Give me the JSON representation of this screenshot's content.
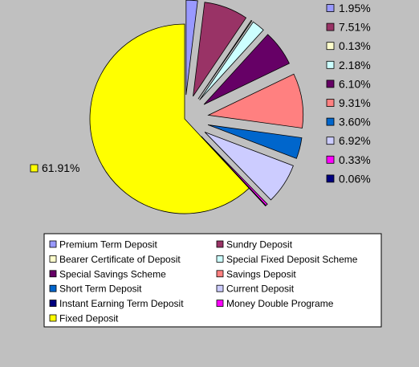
{
  "chart_data": {
    "type": "pie",
    "exploded": true,
    "legend_position": "bottom",
    "slices": [
      {
        "name": "Premium Term Deposit",
        "value": 1.95,
        "label": "1.95%",
        "color": "#9999ff"
      },
      {
        "name": "Sundry Deposit",
        "value": 7.51,
        "label": "7.51%",
        "color": "#993366"
      },
      {
        "name": "Bearer Certificate of Deposit",
        "value": 0.13,
        "label": "0.13%",
        "color": "#ffffcc"
      },
      {
        "name": "Special Fixed Deposit Scheme",
        "value": 2.18,
        "label": "2.18%",
        "color": "#ccffff"
      },
      {
        "name": "Special Savings Scheme",
        "value": 6.1,
        "label": "6.10%",
        "color": "#660066"
      },
      {
        "name": "Savings Deposit",
        "value": 9.31,
        "label": "9.31%",
        "color": "#ff8080"
      },
      {
        "name": "Short Term Deposit",
        "value": 3.6,
        "label": "3.60%",
        "color": "#0066cc"
      },
      {
        "name": "Current Deposit",
        "value": 6.92,
        "label": "6.92%",
        "color": "#ccccff"
      },
      {
        "name": "Money Double Programe",
        "value": 0.33,
        "label": "0.33%",
        "color": "#ff00ff"
      },
      {
        "name": "Instant Earning Term Deposit",
        "value": 0.06,
        "label": "0.06%",
        "color": "#000080"
      },
      {
        "name": "Fixed Deposit",
        "value": 61.91,
        "label": "61.91%",
        "color": "#ffff00"
      }
    ],
    "legend_order": [
      "Premium Term Deposit",
      "Sundry Deposit",
      "Bearer Certificate of Deposit",
      "Special Fixed Deposit Scheme",
      "Special Savings Scheme",
      "Savings Deposit",
      "Short Term Deposit",
      "Current Deposit",
      "Instant Earning Term Deposit",
      "Money Double Programe",
      "Fixed Deposit"
    ]
  }
}
